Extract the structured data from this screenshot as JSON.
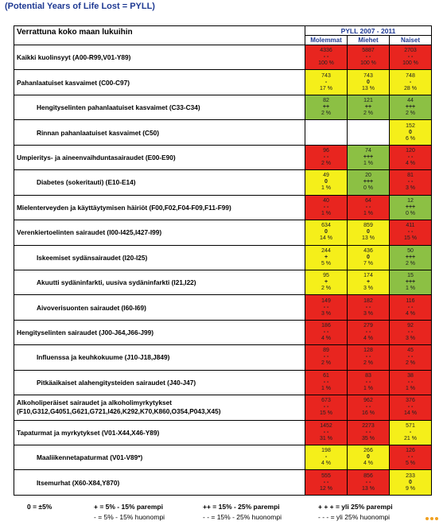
{
  "heading": "(Potential Years of Life Lost = PYLL)",
  "table": {
    "left_header": "Verrattuna koko maan lukuihin",
    "period": "PYLL 2007 - 2011",
    "columns": [
      "Molemmat",
      "Miehet",
      "Naiset"
    ],
    "rows": [
      {
        "label": "Kaikki kuolinsyyt (A00-R99,V01-Y89)",
        "sub": false,
        "cells": [
          {
            "val": "4336",
            "sym": "- -",
            "pct": "100 %",
            "color": "red"
          },
          {
            "val": "5887",
            "sym": "- -",
            "pct": "100 %",
            "color": "red"
          },
          {
            "val": "2703",
            "sym": "- -",
            "pct": "100 %",
            "color": "red"
          }
        ]
      },
      {
        "label": "Pahanlaatuiset kasvaimet (C00-C97)",
        "sub": false,
        "cells": [
          {
            "val": "743",
            "sym": "-",
            "pct": "17 %",
            "color": "yellow"
          },
          {
            "val": "743",
            "sym": "0",
            "pct": "13 %",
            "color": "yellow"
          },
          {
            "val": "748",
            "sym": "-",
            "pct": "28 %",
            "color": "yellow"
          }
        ]
      },
      {
        "label": "Hengityselinten pahanlaatuiset kasvaimet (C33-C34)",
        "sub": true,
        "cells": [
          {
            "val": "82",
            "sym": "++",
            "pct": "2 %",
            "color": "green"
          },
          {
            "val": "121",
            "sym": "++",
            "pct": "2 %",
            "color": "green"
          },
          {
            "val": "44",
            "sym": "+++",
            "pct": "2 %",
            "color": "green"
          }
        ]
      },
      {
        "label": "Rinnan pahanlaatuiset kasvaimet (C50)",
        "sub": true,
        "cells": [
          {
            "val": "",
            "sym": "",
            "pct": "",
            "color": "white"
          },
          {
            "val": "",
            "sym": "",
            "pct": "",
            "color": "white"
          },
          {
            "val": "152",
            "sym": "0",
            "pct": "6 %",
            "color": "yellow"
          }
        ]
      },
      {
        "label": "Umpieritys- ja aineenvaihduntasairaudet (E00-E90)",
        "sub": false,
        "cells": [
          {
            "val": "96",
            "sym": "- -",
            "pct": "2 %",
            "color": "red"
          },
          {
            "val": "74",
            "sym": "+++",
            "pct": "1 %",
            "color": "green"
          },
          {
            "val": "120",
            "sym": "- -",
            "pct": "4 %",
            "color": "red"
          }
        ]
      },
      {
        "label": "Diabetes (sokeritauti) (E10-E14)",
        "sub": true,
        "cells": [
          {
            "val": "49",
            "sym": "0",
            "pct": "1 %",
            "color": "yellow"
          },
          {
            "val": "20",
            "sym": "+++",
            "pct": "0 %",
            "color": "green"
          },
          {
            "val": "81",
            "sym": "- -",
            "pct": "3 %",
            "color": "red"
          }
        ]
      },
      {
        "label": "Mielenterveyden ja käyttäytymisen häiriöt (F00,F02,F04-F09,F11-F99)",
        "sub": false,
        "cells": [
          {
            "val": "40",
            "sym": "- -",
            "pct": "1 %",
            "color": "red"
          },
          {
            "val": "64",
            "sym": "- -",
            "pct": "1 %",
            "color": "red"
          },
          {
            "val": "12",
            "sym": "+++",
            "pct": "0 %",
            "color": "green"
          }
        ]
      },
      {
        "label": "Verenkiertoelinten sairaudet (I00-I425,I427-I99)",
        "sub": false,
        "cells": [
          {
            "val": "634",
            "sym": "0",
            "pct": "14 %",
            "color": "yellow"
          },
          {
            "val": "859",
            "sym": "0",
            "pct": "13 %",
            "color": "yellow"
          },
          {
            "val": "411",
            "sym": "- -",
            "pct": "15 %",
            "color": "red"
          }
        ]
      },
      {
        "label": "Iskeemiset sydänsairaudet (I20-I25)",
        "sub": true,
        "cells": [
          {
            "val": "244",
            "sym": "+",
            "pct": "5 %",
            "color": "yellow"
          },
          {
            "val": "436",
            "sym": "0",
            "pct": "7 %",
            "color": "yellow"
          },
          {
            "val": "50",
            "sym": "+++",
            "pct": "2 %",
            "color": "green"
          }
        ]
      },
      {
        "label": "Akuutti sydäninfarkti, uusiva sydäninfarkti (I21,I22)",
        "sub": true,
        "cells": [
          {
            "val": "95",
            "sym": "+",
            "pct": "2 %",
            "color": "yellow"
          },
          {
            "val": "174",
            "sym": "+",
            "pct": "3 %",
            "color": "yellow"
          },
          {
            "val": "15",
            "sym": "+++",
            "pct": "1 %",
            "color": "green"
          }
        ]
      },
      {
        "label": "Aivoverisuonten sairaudet (I60-I69)",
        "sub": true,
        "cells": [
          {
            "val": "149",
            "sym": "- -",
            "pct": "3 %",
            "color": "red"
          },
          {
            "val": "182",
            "sym": "- -",
            "pct": "3 %",
            "color": "red"
          },
          {
            "val": "116",
            "sym": "- -",
            "pct": "4 %",
            "color": "red"
          }
        ]
      },
      {
        "label": "Hengityselinten sairaudet (J00-J64,J66-J99)",
        "sub": false,
        "cells": [
          {
            "val": "186",
            "sym": "- -",
            "pct": "4 %",
            "color": "red"
          },
          {
            "val": "279",
            "sym": "- -",
            "pct": "4 %",
            "color": "red"
          },
          {
            "val": "92",
            "sym": "- -",
            "pct": "3 %",
            "color": "red"
          }
        ]
      },
      {
        "label": "Influenssa ja keuhkokuume (J10-J18,J849)",
        "sub": true,
        "cells": [
          {
            "val": "89",
            "sym": "- -",
            "pct": "2 %",
            "color": "red"
          },
          {
            "val": "128",
            "sym": "- -",
            "pct": "2 %",
            "color": "red"
          },
          {
            "val": "45",
            "sym": "- -",
            "pct": "2 %",
            "color": "red"
          }
        ]
      },
      {
        "label": "Pitkäaikaiset alahengitysteiden sairaudet (J40-J47)",
        "sub": true,
        "cells": [
          {
            "val": "61",
            "sym": "- -",
            "pct": "1 %",
            "color": "red"
          },
          {
            "val": "83",
            "sym": "- -",
            "pct": "1 %",
            "color": "red"
          },
          {
            "val": "38",
            "sym": "- -",
            "pct": "1 %",
            "color": "red"
          }
        ]
      },
      {
        "label": "Alkoholiperäiset sairaudet ja alkoholimyrkytykset (F10,G312,G4051,G621,G721,I426,K292,K70,K860,O354,P043,X45)",
        "sub": false,
        "two": true,
        "cells": [
          {
            "val": "673",
            "sym": "- -",
            "pct": "15 %",
            "color": "red"
          },
          {
            "val": "962",
            "sym": "- -",
            "pct": "16 %",
            "color": "red"
          },
          {
            "val": "376",
            "sym": "- -",
            "pct": "14 %",
            "color": "red"
          }
        ]
      },
      {
        "label": "Tapaturmat ja myrkytykset (V01-X44,X46-Y89)",
        "sub": false,
        "cells": [
          {
            "val": "1452",
            "sym": "- -",
            "pct": "31 %",
            "color": "red"
          },
          {
            "val": "2273",
            "sym": "- -",
            "pct": "35 %",
            "color": "red"
          },
          {
            "val": "571",
            "sym": "-",
            "pct": "21 %",
            "color": "yellow"
          }
        ]
      },
      {
        "label": "Maaliikennetapaturmat (V01-V89*)",
        "sub": true,
        "cells": [
          {
            "val": "198",
            "sym": "-",
            "pct": "4 %",
            "color": "yellow"
          },
          {
            "val": "266",
            "sym": "0",
            "pct": "4 %",
            "color": "yellow"
          },
          {
            "val": "126",
            "sym": "- -",
            "pct": "5 %",
            "color": "red"
          }
        ]
      },
      {
        "label": "Itsemurhat (X60-X84,Y870)",
        "sub": true,
        "cells": [
          {
            "val": "555",
            "sym": "- -",
            "pct": "12 %",
            "color": "red"
          },
          {
            "val": "856",
            "sym": "- -",
            "pct": "13 %",
            "color": "red"
          },
          {
            "val": "233",
            "sym": "0",
            "pct": "9 %",
            "color": "yellow"
          }
        ]
      }
    ]
  },
  "legend": {
    "zero": "0 = ±5%",
    "plus1": "+ = 5% - 15% parempi",
    "minus1": "- = 5% - 15% huonompi",
    "plus2": "++ = 15% - 25% parempi",
    "minus2": "- - = 15% - 25% huonompi",
    "plus3": "+ + + = yli 25% parempi",
    "minus3": "- - - = yli 25% huonompi"
  },
  "colors": {
    "green": "#8cc044",
    "yellow": "#f5ef1a",
    "red": "#e8251f"
  }
}
